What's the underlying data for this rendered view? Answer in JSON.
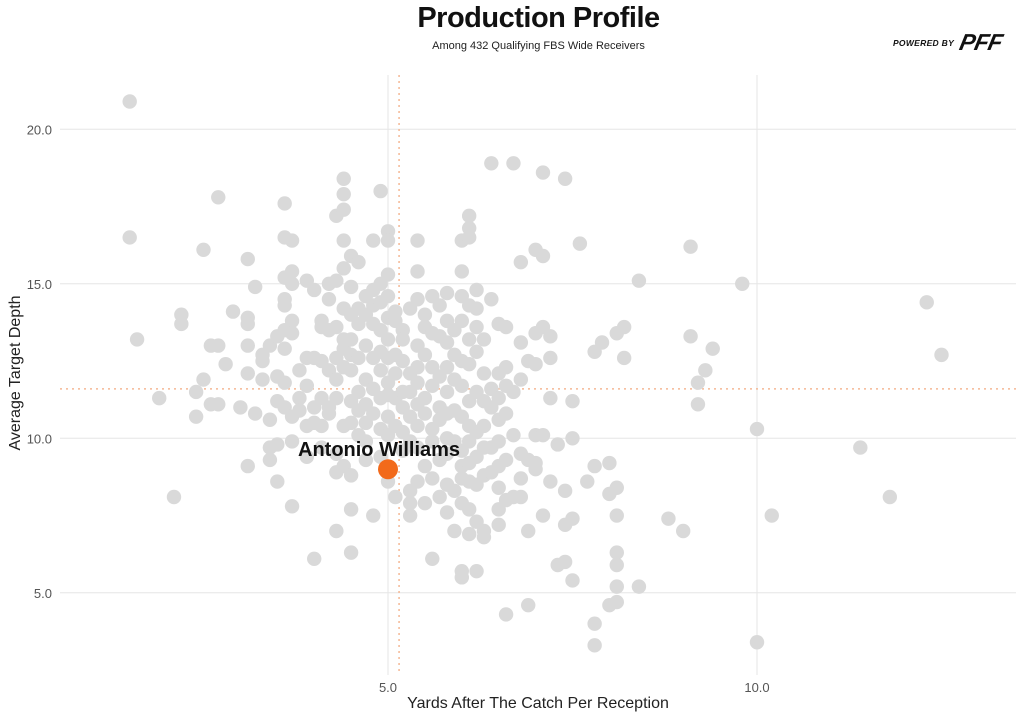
{
  "header": {
    "title": "Production Profile",
    "subtitle": "Among 432 Qualifying FBS Wide Receivers"
  },
  "brand": {
    "powered_by": "POWERED BY",
    "logo_text": "PFF"
  },
  "colors": {
    "background": "#ffffff",
    "point": "#d9d9d9",
    "highlight": "#f26a1b",
    "grid": "#e6e6e6",
    "average_line": "#f5b894"
  },
  "chart_data": {
    "type": "scatter",
    "title": "Production Profile",
    "subtitle": "Among 432 Qualifying FBS Wide Receivers",
    "xlabel": "Yards After The Catch Per Reception",
    "ylabel": "Average Target Depth",
    "xlim": [
      1.0,
      12.5
    ],
    "ylim": [
      3.0,
      22.0
    ],
    "x_ticks": [
      5.0,
      10.0
    ],
    "x_tick_labels": [
      "5.0",
      "10.0"
    ],
    "y_ticks": [
      5.0,
      10.0,
      15.0,
      20.0
    ],
    "y_tick_labels": [
      "5.0",
      "10.0",
      "15.0",
      "20.0"
    ],
    "grid": true,
    "average_lines": {
      "x": 5.15,
      "y": 11.6
    },
    "highlight": {
      "name": "Antonio Williams",
      "x": 5.0,
      "y": 9.0
    },
    "points": [
      [
        1.5,
        20.9
      ],
      [
        1.5,
        16.5
      ],
      [
        1.6,
        13.2
      ],
      [
        1.9,
        11.3
      ],
      [
        2.1,
        8.1
      ],
      [
        2.2,
        14.0
      ],
      [
        2.2,
        13.7
      ],
      [
        2.4,
        10.7
      ],
      [
        2.4,
        11.5
      ],
      [
        2.5,
        11.9
      ],
      [
        2.5,
        16.1
      ],
      [
        2.6,
        13.0
      ],
      [
        2.6,
        11.1
      ],
      [
        2.7,
        17.8
      ],
      [
        2.7,
        13.0
      ],
      [
        2.7,
        11.1
      ],
      [
        2.8,
        12.4
      ],
      [
        2.9,
        14.1
      ],
      [
        3.0,
        11.0
      ],
      [
        3.1,
        13.9
      ],
      [
        3.1,
        13.7
      ],
      [
        3.1,
        15.8
      ],
      [
        3.1,
        13.0
      ],
      [
        3.1,
        12.1
      ],
      [
        3.1,
        9.1
      ],
      [
        3.2,
        10.8
      ],
      [
        3.2,
        14.9
      ],
      [
        3.3,
        12.7
      ],
      [
        3.3,
        11.9
      ],
      [
        3.3,
        12.5
      ],
      [
        3.4,
        13.0
      ],
      [
        3.4,
        10.6
      ],
      [
        3.4,
        9.7
      ],
      [
        3.4,
        9.3
      ],
      [
        3.5,
        13.3
      ],
      [
        3.5,
        12.0
      ],
      [
        3.5,
        11.2
      ],
      [
        3.5,
        9.8
      ],
      [
        3.5,
        8.6
      ],
      [
        3.6,
        17.6
      ],
      [
        3.6,
        16.5
      ],
      [
        3.6,
        15.2
      ],
      [
        3.6,
        14.5
      ],
      [
        3.6,
        14.3
      ],
      [
        3.6,
        13.5
      ],
      [
        3.6,
        12.9
      ],
      [
        3.6,
        11.8
      ],
      [
        3.6,
        11.0
      ],
      [
        3.7,
        16.4
      ],
      [
        3.7,
        15.4
      ],
      [
        3.7,
        15.0
      ],
      [
        3.7,
        13.8
      ],
      [
        3.7,
        13.4
      ],
      [
        3.7,
        10.7
      ],
      [
        3.7,
        9.9
      ],
      [
        3.7,
        7.8
      ],
      [
        3.8,
        12.2
      ],
      [
        3.8,
        11.3
      ],
      [
        3.8,
        10.9
      ],
      [
        3.9,
        15.1
      ],
      [
        3.9,
        12.6
      ],
      [
        3.9,
        11.7
      ],
      [
        3.9,
        10.4
      ],
      [
        3.9,
        9.4
      ],
      [
        4.0,
        14.8
      ],
      [
        4.0,
        12.6
      ],
      [
        4.0,
        11.0
      ],
      [
        4.0,
        10.5
      ],
      [
        4.0,
        6.1
      ],
      [
        4.1,
        13.8
      ],
      [
        4.1,
        13.6
      ],
      [
        4.1,
        12.5
      ],
      [
        4.1,
        11.3
      ],
      [
        4.1,
        10.4
      ],
      [
        4.1,
        9.7
      ],
      [
        4.2,
        15.0
      ],
      [
        4.2,
        14.5
      ],
      [
        4.2,
        13.5
      ],
      [
        4.2,
        12.2
      ],
      [
        4.2,
        11.0
      ],
      [
        4.2,
        10.8
      ],
      [
        4.3,
        17.2
      ],
      [
        4.3,
        15.1
      ],
      [
        4.3,
        13.6
      ],
      [
        4.3,
        12.6
      ],
      [
        4.3,
        11.9
      ],
      [
        4.3,
        11.3
      ],
      [
        4.3,
        9.5
      ],
      [
        4.3,
        8.9
      ],
      [
        4.3,
        7.0
      ],
      [
        4.4,
        18.4
      ],
      [
        4.4,
        17.9
      ],
      [
        4.4,
        17.4
      ],
      [
        4.4,
        16.4
      ],
      [
        4.4,
        15.5
      ],
      [
        4.4,
        14.2
      ],
      [
        4.4,
        13.2
      ],
      [
        4.4,
        12.9
      ],
      [
        4.4,
        12.3
      ],
      [
        4.4,
        10.4
      ],
      [
        4.4,
        9.1
      ],
      [
        4.5,
        15.9
      ],
      [
        4.5,
        14.9
      ],
      [
        4.5,
        14.0
      ],
      [
        4.5,
        13.2
      ],
      [
        4.5,
        12.7
      ],
      [
        4.5,
        12.2
      ],
      [
        4.5,
        11.2
      ],
      [
        4.5,
        10.5
      ],
      [
        4.5,
        8.8
      ],
      [
        4.5,
        7.7
      ],
      [
        4.5,
        6.3
      ],
      [
        4.6,
        15.7
      ],
      [
        4.6,
        14.2
      ],
      [
        4.6,
        13.7
      ],
      [
        4.6,
        12.6
      ],
      [
        4.6,
        11.5
      ],
      [
        4.6,
        10.9
      ],
      [
        4.6,
        10.1
      ],
      [
        4.7,
        14.6
      ],
      [
        4.7,
        14.0
      ],
      [
        4.7,
        13.0
      ],
      [
        4.7,
        11.9
      ],
      [
        4.7,
        11.1
      ],
      [
        4.7,
        10.5
      ],
      [
        4.7,
        9.9
      ],
      [
        4.7,
        9.3
      ],
      [
        4.8,
        16.4
      ],
      [
        4.8,
        14.8
      ],
      [
        4.8,
        14.3
      ],
      [
        4.8,
        13.7
      ],
      [
        4.8,
        12.6
      ],
      [
        4.8,
        11.6
      ],
      [
        4.8,
        10.8
      ],
      [
        4.8,
        7.5
      ],
      [
        4.9,
        18.0
      ],
      [
        4.9,
        15.0
      ],
      [
        4.9,
        14.4
      ],
      [
        4.9,
        13.5
      ],
      [
        4.9,
        12.8
      ],
      [
        4.9,
        12.2
      ],
      [
        4.9,
        11.3
      ],
      [
        4.9,
        10.3
      ],
      [
        4.9,
        9.4
      ],
      [
        5.0,
        16.7
      ],
      [
        5.0,
        16.4
      ],
      [
        5.0,
        15.3
      ],
      [
        5.0,
        14.6
      ],
      [
        5.0,
        13.9
      ],
      [
        5.0,
        13.2
      ],
      [
        5.0,
        12.6
      ],
      [
        5.0,
        11.8
      ],
      [
        5.0,
        11.4
      ],
      [
        5.0,
        10.7
      ],
      [
        5.0,
        10.1
      ],
      [
        5.0,
        8.6
      ],
      [
        5.1,
        14.1
      ],
      [
        5.1,
        13.8
      ],
      [
        5.1,
        12.7
      ],
      [
        5.1,
        12.1
      ],
      [
        5.1,
        11.3
      ],
      [
        5.1,
        10.4
      ],
      [
        5.1,
        8.1
      ],
      [
        5.2,
        13.5
      ],
      [
        5.2,
        13.2
      ],
      [
        5.2,
        12.5
      ],
      [
        5.2,
        11.5
      ],
      [
        5.2,
        11.0
      ],
      [
        5.2,
        10.2
      ],
      [
        5.2,
        9.6
      ],
      [
        5.3,
        14.2
      ],
      [
        5.3,
        12.1
      ],
      [
        5.3,
        11.5
      ],
      [
        5.3,
        10.7
      ],
      [
        5.3,
        9.9
      ],
      [
        5.3,
        8.3
      ],
      [
        5.3,
        7.5
      ],
      [
        5.3,
        7.9
      ],
      [
        5.4,
        16.4
      ],
      [
        5.4,
        15.4
      ],
      [
        5.4,
        14.5
      ],
      [
        5.4,
        13.0
      ],
      [
        5.4,
        12.3
      ],
      [
        5.4,
        11.8
      ],
      [
        5.4,
        11.1
      ],
      [
        5.4,
        10.4
      ],
      [
        5.4,
        9.7
      ],
      [
        5.4,
        8.6
      ],
      [
        5.5,
        14.0
      ],
      [
        5.5,
        13.6
      ],
      [
        5.5,
        12.7
      ],
      [
        5.5,
        11.3
      ],
      [
        5.5,
        10.8
      ],
      [
        5.5,
        9.1
      ],
      [
        5.5,
        7.9
      ],
      [
        5.6,
        14.6
      ],
      [
        5.6,
        13.4
      ],
      [
        5.6,
        12.3
      ],
      [
        5.6,
        11.7
      ],
      [
        5.6,
        10.3
      ],
      [
        5.6,
        9.9
      ],
      [
        5.6,
        8.7
      ],
      [
        5.6,
        6.1
      ],
      [
        5.7,
        14.3
      ],
      [
        5.7,
        13.3
      ],
      [
        5.7,
        12.0
      ],
      [
        5.7,
        11.0
      ],
      [
        5.7,
        10.6
      ],
      [
        5.7,
        9.3
      ],
      [
        5.7,
        8.1
      ],
      [
        5.8,
        14.7
      ],
      [
        5.8,
        13.8
      ],
      [
        5.8,
        13.1
      ],
      [
        5.8,
        12.3
      ],
      [
        5.8,
        11.5
      ],
      [
        5.8,
        10.8
      ],
      [
        5.8,
        10.0
      ],
      [
        5.8,
        9.5
      ],
      [
        5.8,
        8.5
      ],
      [
        5.8,
        7.6
      ],
      [
        5.9,
        13.5
      ],
      [
        5.9,
        12.7
      ],
      [
        5.9,
        11.9
      ],
      [
        5.9,
        10.9
      ],
      [
        5.9,
        9.9
      ],
      [
        5.9,
        8.3
      ],
      [
        5.9,
        7.0
      ],
      [
        6.0,
        16.4
      ],
      [
        6.0,
        15.4
      ],
      [
        6.0,
        14.6
      ],
      [
        6.0,
        13.8
      ],
      [
        6.0,
        12.5
      ],
      [
        6.0,
        11.7
      ],
      [
        6.0,
        10.7
      ],
      [
        6.0,
        9.6
      ],
      [
        6.0,
        9.1
      ],
      [
        6.0,
        8.7
      ],
      [
        6.0,
        7.9
      ],
      [
        6.0,
        5.7
      ],
      [
        6.0,
        5.5
      ],
      [
        6.1,
        17.2
      ],
      [
        6.1,
        16.8
      ],
      [
        6.1,
        16.5
      ],
      [
        6.1,
        14.3
      ],
      [
        6.1,
        13.2
      ],
      [
        6.1,
        12.4
      ],
      [
        6.1,
        11.2
      ],
      [
        6.1,
        10.4
      ],
      [
        6.1,
        9.9
      ],
      [
        6.1,
        9.2
      ],
      [
        6.1,
        8.6
      ],
      [
        6.1,
        7.7
      ],
      [
        6.1,
        6.9
      ],
      [
        6.2,
        14.8
      ],
      [
        6.2,
        14.2
      ],
      [
        6.2,
        13.6
      ],
      [
        6.2,
        12.8
      ],
      [
        6.2,
        11.5
      ],
      [
        6.2,
        10.2
      ],
      [
        6.2,
        9.4
      ],
      [
        6.2,
        8.5
      ],
      [
        6.2,
        7.3
      ],
      [
        6.2,
        5.7
      ],
      [
        6.3,
        13.2
      ],
      [
        6.3,
        12.1
      ],
      [
        6.3,
        11.2
      ],
      [
        6.3,
        10.4
      ],
      [
        6.3,
        9.7
      ],
      [
        6.3,
        8.8
      ],
      [
        6.3,
        7.0
      ],
      [
        6.3,
        6.8
      ],
      [
        6.4,
        18.9
      ],
      [
        6.4,
        14.5
      ],
      [
        6.4,
        11.6
      ],
      [
        6.4,
        11.0
      ],
      [
        6.4,
        9.7
      ],
      [
        6.4,
        8.9
      ],
      [
        6.5,
        13.7
      ],
      [
        6.5,
        12.1
      ],
      [
        6.5,
        11.3
      ],
      [
        6.5,
        10.6
      ],
      [
        6.5,
        9.9
      ],
      [
        6.5,
        9.1
      ],
      [
        6.5,
        8.4
      ],
      [
        6.5,
        7.7
      ],
      [
        6.5,
        7.2
      ],
      [
        6.6,
        13.6
      ],
      [
        6.6,
        12.3
      ],
      [
        6.6,
        11.7
      ],
      [
        6.6,
        10.8
      ],
      [
        6.6,
        9.3
      ],
      [
        6.6,
        8.0
      ],
      [
        6.6,
        4.3
      ],
      [
        6.7,
        18.9
      ],
      [
        6.7,
        11.5
      ],
      [
        6.7,
        10.1
      ],
      [
        6.7,
        8.1
      ],
      [
        6.8,
        15.7
      ],
      [
        6.8,
        13.1
      ],
      [
        6.8,
        11.9
      ],
      [
        6.8,
        9.5
      ],
      [
        6.8,
        8.7
      ],
      [
        6.8,
        8.1
      ],
      [
        6.9,
        12.5
      ],
      [
        6.9,
        9.3
      ],
      [
        6.9,
        7.0
      ],
      [
        6.9,
        4.6
      ],
      [
        7.0,
        16.1
      ],
      [
        7.0,
        13.4
      ],
      [
        7.0,
        12.4
      ],
      [
        7.0,
        10.1
      ],
      [
        7.0,
        9.2
      ],
      [
        7.0,
        9.0
      ],
      [
        7.1,
        18.6
      ],
      [
        7.1,
        15.9
      ],
      [
        7.1,
        13.6
      ],
      [
        7.1,
        10.1
      ],
      [
        7.1,
        7.5
      ],
      [
        7.2,
        13.3
      ],
      [
        7.2,
        12.6
      ],
      [
        7.2,
        11.3
      ],
      [
        7.2,
        8.6
      ],
      [
        7.3,
        9.8
      ],
      [
        7.3,
        5.9
      ],
      [
        7.4,
        18.4
      ],
      [
        7.4,
        8.3
      ],
      [
        7.4,
        7.2
      ],
      [
        7.4,
        6.0
      ],
      [
        7.5,
        11.2
      ],
      [
        7.5,
        10.0
      ],
      [
        7.5,
        7.4
      ],
      [
        7.5,
        5.4
      ],
      [
        7.6,
        16.3
      ],
      [
        7.7,
        8.6
      ],
      [
        7.8,
        9.1
      ],
      [
        7.8,
        4.0
      ],
      [
        7.8,
        3.3
      ],
      [
        7.8,
        12.8
      ],
      [
        7.9,
        13.1
      ],
      [
        8.0,
        9.2
      ],
      [
        8.0,
        8.2
      ],
      [
        8.0,
        4.6
      ],
      [
        8.1,
        13.4
      ],
      [
        8.1,
        8.4
      ],
      [
        8.1,
        7.5
      ],
      [
        8.1,
        6.3
      ],
      [
        8.1,
        5.9
      ],
      [
        8.1,
        5.2
      ],
      [
        8.1,
        4.7
      ],
      [
        8.2,
        12.6
      ],
      [
        8.2,
        13.6
      ],
      [
        8.4,
        15.1
      ],
      [
        8.4,
        5.2
      ],
      [
        8.8,
        7.4
      ],
      [
        9.0,
        7.0
      ],
      [
        9.1,
        16.2
      ],
      [
        9.1,
        13.3
      ],
      [
        9.2,
        11.8
      ],
      [
        9.2,
        11.1
      ],
      [
        9.3,
        12.2
      ],
      [
        9.4,
        12.9
      ],
      [
        9.8,
        15.0
      ],
      [
        10.0,
        10.3
      ],
      [
        10.0,
        3.4
      ],
      [
        10.2,
        7.5
      ],
      [
        11.4,
        9.7
      ],
      [
        11.8,
        8.1
      ],
      [
        12.3,
        14.4
      ],
      [
        12.5,
        12.7
      ]
    ]
  }
}
